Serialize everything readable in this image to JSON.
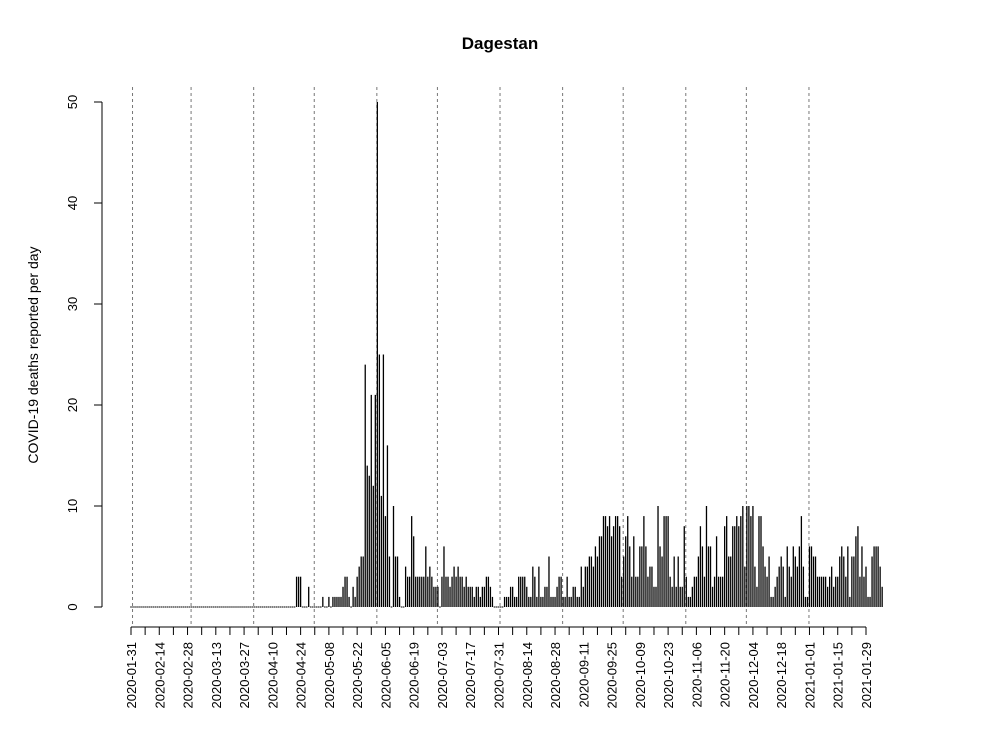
{
  "chart_data": {
    "type": "bar",
    "title": "Dagestan",
    "xlabel": "",
    "ylabel": "COVID-19 deaths reported per day",
    "ylim": [
      0,
      50
    ],
    "yticks": [
      0,
      10,
      20,
      30,
      40,
      50
    ],
    "x_start": "2020-01-31",
    "x_end": "2021-01-29",
    "xticks": [
      "2020-01-31",
      "2020-02-14",
      "2020-02-28",
      "2020-03-13",
      "2020-03-27",
      "2020-04-10",
      "2020-04-24",
      "2020-05-08",
      "2020-05-22",
      "2020-06-05",
      "2020-06-19",
      "2020-07-03",
      "2020-07-17",
      "2020-07-31",
      "2020-08-14",
      "2020-08-28",
      "2020-09-11",
      "2020-09-25",
      "2020-10-09",
      "2020-10-23",
      "2020-11-06",
      "2020-11-20",
      "2020-12-04",
      "2020-12-18",
      "2021-01-01",
      "2021-01-15",
      "2021-01-29"
    ],
    "month_lines": [
      "2020-02-01",
      "2020-03-01",
      "2020-04-01",
      "2020-05-01",
      "2020-06-01",
      "2020-07-01",
      "2020-08-01",
      "2020-09-01",
      "2020-10-01",
      "2020-11-01",
      "2020-12-01",
      "2021-01-01"
    ],
    "grid": "dotted vertical lines at month starts",
    "values": [
      0,
      0,
      0,
      0,
      0,
      0,
      0,
      0,
      0,
      0,
      0,
      0,
      0,
      0,
      0,
      0,
      0,
      0,
      0,
      0,
      0,
      0,
      0,
      0,
      0,
      0,
      0,
      0,
      0,
      0,
      0,
      0,
      0,
      0,
      0,
      0,
      0,
      0,
      0,
      0,
      0,
      0,
      0,
      0,
      0,
      0,
      0,
      0,
      0,
      0,
      0,
      0,
      0,
      0,
      0,
      0,
      0,
      0,
      0,
      0,
      0,
      0,
      0,
      0,
      0,
      0,
      0,
      0,
      0,
      0,
      0,
      0,
      0,
      0,
      0,
      0,
      0,
      0,
      0,
      0,
      0,
      0,
      3,
      3,
      3,
      0,
      0,
      0,
      2,
      0,
      0,
      0,
      0,
      0,
      0,
      1,
      0,
      0,
      1,
      0,
      1,
      1,
      1,
      1,
      1,
      2,
      3,
      3,
      1,
      0,
      2,
      1,
      3,
      4,
      5,
      5,
      24,
      14,
      13,
      21,
      12,
      21,
      50,
      25,
      11,
      25,
      9,
      16,
      5,
      0,
      10,
      5,
      5,
      1,
      0,
      0,
      4,
      3,
      3,
      9,
      7,
      3,
      3,
      3,
      3,
      3,
      6,
      3,
      4,
      3,
      2,
      2,
      2,
      0,
      3,
      6,
      3,
      3,
      2,
      3,
      4,
      3,
      4,
      3,
      3,
      2,
      3,
      2,
      2,
      2,
      1,
      2,
      2,
      1,
      2,
      2,
      3,
      3,
      2,
      1,
      0,
      0,
      0,
      0,
      0,
      1,
      1,
      1,
      2,
      2,
      1,
      1,
      3,
      3,
      3,
      3,
      2,
      1,
      1,
      4,
      3,
      1,
      4,
      1,
      1,
      2,
      2,
      5,
      1,
      1,
      1,
      2,
      3,
      3,
      1,
      1,
      3,
      1,
      1,
      2,
      2,
      1,
      1,
      4,
      2,
      4,
      4,
      5,
      5,
      4,
      6,
      5,
      7,
      7,
      9,
      9,
      8,
      9,
      7,
      8,
      9,
      9,
      8,
      3,
      5,
      7,
      9,
      6,
      3,
      7,
      3,
      3,
      6,
      6,
      9,
      6,
      3,
      4,
      4,
      2,
      2,
      10,
      6,
      5,
      9,
      9,
      9,
      3,
      2,
      5,
      2,
      5,
      2,
      2,
      8,
      3,
      1,
      1,
      2,
      3,
      3,
      5,
      8,
      6,
      3,
      10,
      6,
      6,
      2,
      3,
      7,
      3,
      3,
      3,
      8,
      9,
      5,
      5,
      8,
      8,
      9,
      8,
      9,
      10,
      4,
      10,
      10,
      9,
      10,
      4,
      2,
      9,
      9,
      6,
      4,
      3,
      5,
      1,
      1,
      2,
      3,
      4,
      5,
      4,
      1,
      6,
      4,
      3,
      6,
      5,
      4,
      6,
      9,
      4,
      1,
      1,
      6,
      6,
      5,
      5,
      3,
      3,
      3,
      3,
      3,
      2,
      3,
      4,
      2,
      3,
      3,
      5,
      6,
      5,
      3,
      6,
      1,
      5,
      5,
      7,
      8,
      3,
      6,
      3,
      4,
      1,
      1,
      5,
      6,
      6,
      6,
      4,
      2
    ]
  }
}
